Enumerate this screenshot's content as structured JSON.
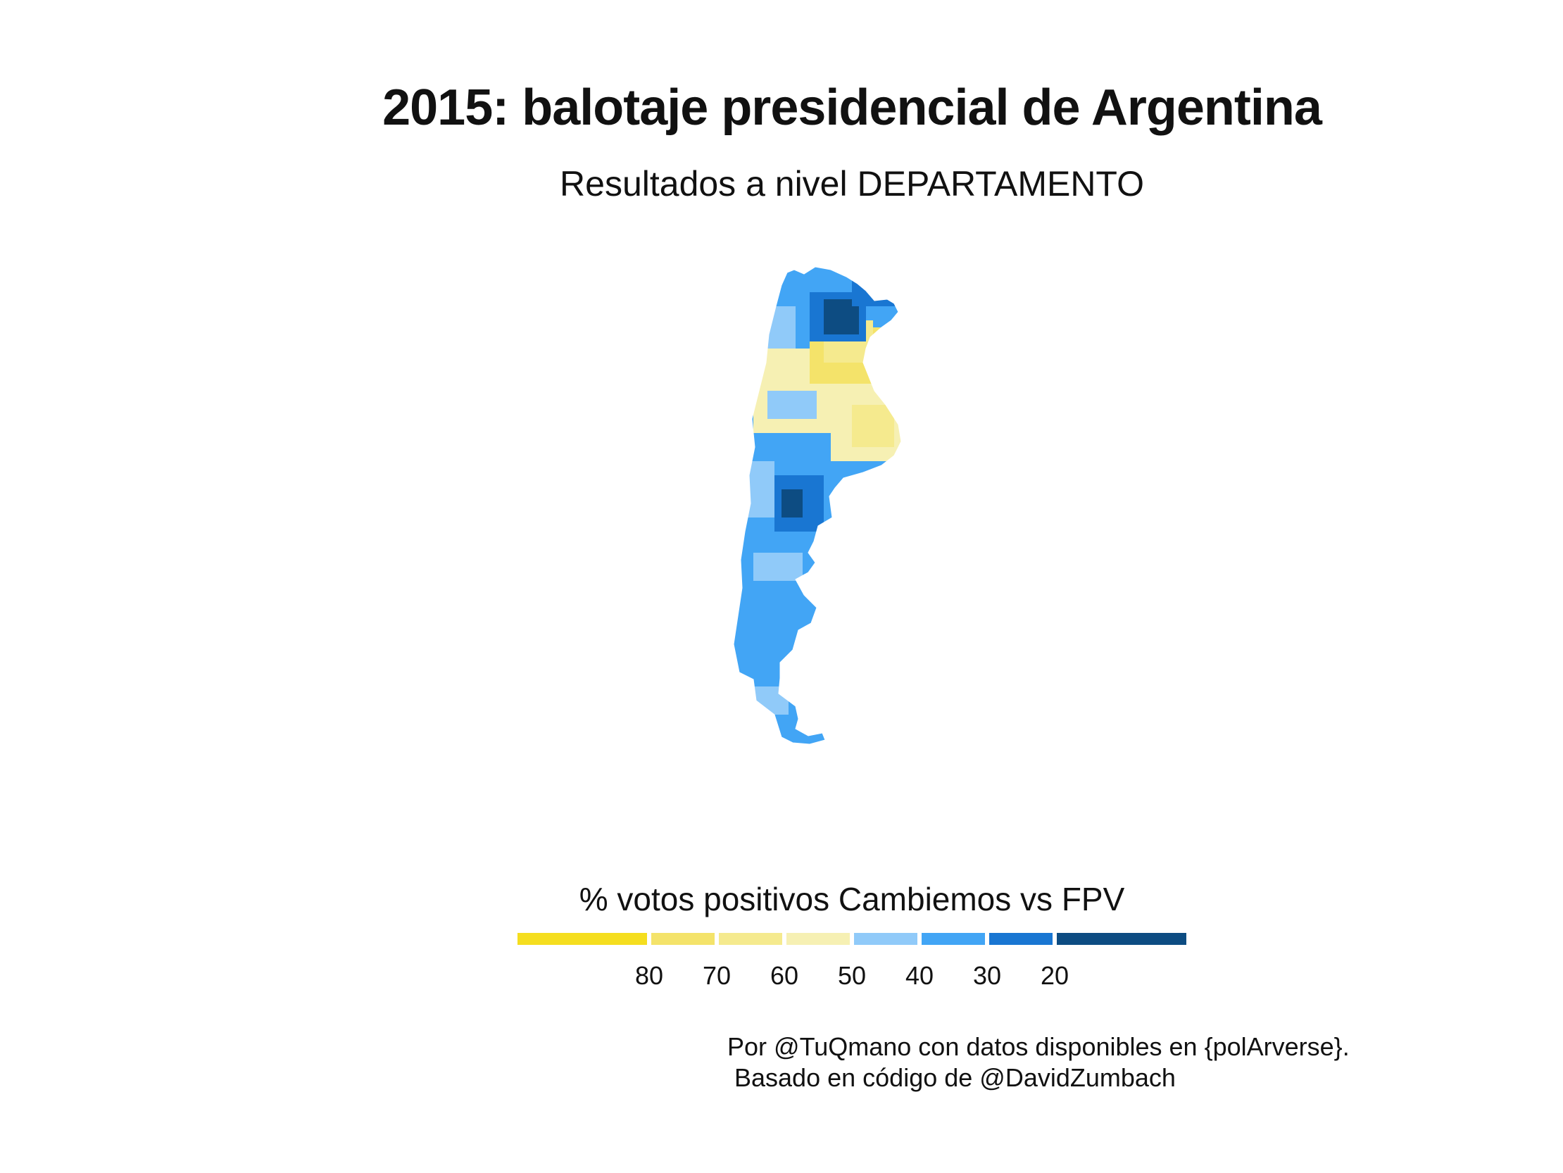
{
  "title": "2015: balotaje presidencial de Argentina",
  "subtitle": "Resultados a nivel DEPARTAMENTO",
  "legend": {
    "title": "% votos positivos Cambiemos vs FPV",
    "bins": [
      {
        "color": "#f5de1f"
      },
      {
        "color": "#f4e36a"
      },
      {
        "color": "#f5ea8e"
      },
      {
        "color": "#f6f0b3"
      },
      {
        "color": "#90caf9"
      },
      {
        "color": "#42a5f5"
      },
      {
        "color": "#1976d2"
      },
      {
        "color": "#0d4c82"
      }
    ],
    "ticks": [
      "80",
      "70",
      "60",
      "50",
      "40",
      "30",
      "20"
    ]
  },
  "caption": {
    "line1": "Por @TuQmano con datos disponibles en {polArverse}.",
    "line2": " Basado en código de @DavidZumbach"
  }
}
